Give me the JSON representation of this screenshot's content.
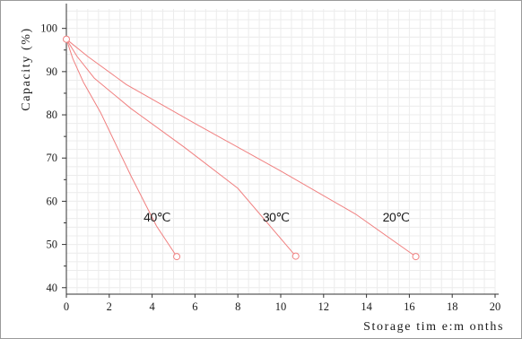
{
  "chart_data": {
    "type": "line",
    "xlabel": "Storage tim e:m onths",
    "ylabel": "Capacity (%)",
    "xlim": [
      0,
      20
    ],
    "ylim": [
      38.5,
      104.5
    ],
    "x_ticks": [
      0,
      2,
      4,
      6,
      8,
      10,
      12,
      14,
      16,
      18,
      20
    ],
    "y_ticks": [
      40,
      50,
      60,
      70,
      80,
      90,
      100
    ],
    "grid": true,
    "colors": {
      "line": "#f08080",
      "grid": "#ececec",
      "axis": "#333333",
      "frame": "#999999"
    },
    "series": [
      {
        "name": "40℃",
        "points": [
          [
            0,
            97.5
          ],
          [
            0.3,
            93
          ],
          [
            0.8,
            87.5
          ],
          [
            1.6,
            80.5
          ],
          [
            3.0,
            66
          ],
          [
            4.2,
            54.3
          ],
          [
            5.15,
            47.2
          ]
        ]
      },
      {
        "name": "30℃",
        "points": [
          [
            0,
            97.5
          ],
          [
            0.5,
            93.5
          ],
          [
            1.3,
            88.5
          ],
          [
            3.0,
            81.5
          ],
          [
            5.5,
            72.5
          ],
          [
            8.0,
            63
          ],
          [
            10.7,
            47.3
          ]
        ]
      },
      {
        "name": "20℃",
        "points": [
          [
            0,
            97.5
          ],
          [
            1.0,
            93.5
          ],
          [
            2.8,
            87
          ],
          [
            6.0,
            78
          ],
          [
            10.0,
            67
          ],
          [
            13.5,
            57
          ],
          [
            16.3,
            47.2
          ]
        ]
      }
    ]
  }
}
